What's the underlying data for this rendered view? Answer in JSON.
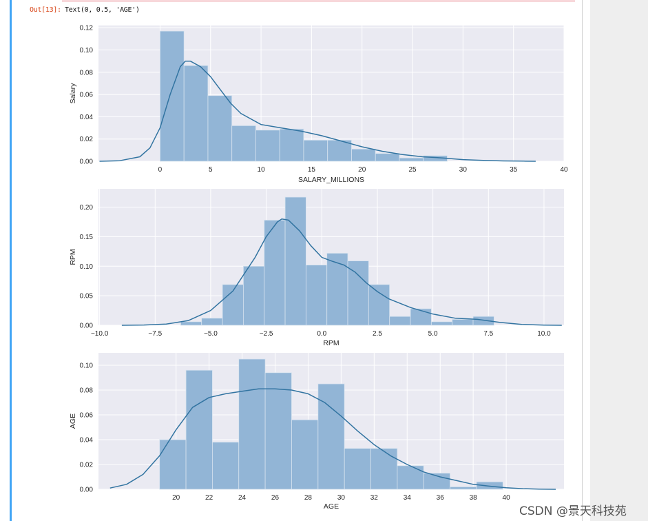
{
  "output_cell": {
    "prompt": "Out[13]:",
    "text": "Text(0, 0.5, 'AGE')"
  },
  "watermark": "CSDN @景天科技苑",
  "colors": {
    "plot_bg": "#eaeaf2",
    "grid": "#ffffff",
    "bar": "#92b5d6",
    "kde": "#3274a1",
    "tick_text": "#262626"
  },
  "chart_data": [
    {
      "type": "bar",
      "subtype": "histogram_with_kde",
      "xlabel": "SALARY_MILLIONS",
      "ylabel": "Salary",
      "xlim": [
        -6.1,
        40
      ],
      "ylim": [
        0,
        0.122
      ],
      "xticks": [
        0,
        5,
        10,
        15,
        20,
        25,
        30,
        35,
        40
      ],
      "xtick_labels": [
        "0",
        "5",
        "10",
        "15",
        "20",
        "25",
        "30",
        "35",
        "40"
      ],
      "yticks": [
        0,
        0.02,
        0.04,
        0.06,
        0.08,
        0.1,
        0.12
      ],
      "ytick_labels": [
        "0.00",
        "0.02",
        "0.04",
        "0.06",
        "0.08",
        "0.10",
        "0.12"
      ],
      "bin_edges": [
        0,
        2.37,
        4.74,
        7.11,
        9.48,
        11.85,
        14.22,
        16.59,
        18.96,
        21.33,
        23.7,
        26.07,
        28.44
      ],
      "values": [
        0.117,
        0.086,
        0.059,
        0.032,
        0.028,
        0.029,
        0.019,
        0.019,
        0.011,
        0.007,
        0.003,
        0.005
      ],
      "kde": {
        "x": [
          -6,
          -4,
          -2,
          -1,
          0,
          1,
          2,
          2.5,
          3,
          4,
          5,
          6,
          7,
          8,
          10,
          12,
          14,
          16,
          18,
          20,
          22,
          24,
          26,
          28,
          30,
          32,
          34,
          36,
          37.2
        ],
        "y": [
          0,
          0.0005,
          0.004,
          0.012,
          0.03,
          0.06,
          0.085,
          0.09,
          0.09,
          0.085,
          0.076,
          0.064,
          0.052,
          0.043,
          0.033,
          0.03,
          0.027,
          0.023,
          0.018,
          0.013,
          0.009,
          0.006,
          0.004,
          0.003,
          0.0015,
          0.0008,
          0.0003,
          0.0001,
          0
        ]
      }
    },
    {
      "type": "bar",
      "subtype": "histogram_with_kde",
      "xlabel": "RPM",
      "ylabel": "RPM",
      "xlim": [
        -10.05,
        10.9
      ],
      "ylim": [
        0,
        0.231
      ],
      "xticks": [
        -10,
        -7.5,
        -5,
        -2.5,
        0,
        2.5,
        5,
        7.5,
        10
      ],
      "xtick_labels": [
        "−10.0",
        "−7.5",
        "−5.0",
        "−2.5",
        "0.0",
        "2.5",
        "5.0",
        "7.5",
        "10.0"
      ],
      "yticks": [
        0,
        0.05,
        0.1,
        0.15,
        0.2
      ],
      "ytick_labels": [
        "0.00",
        "0.05",
        "0.10",
        "0.15",
        "0.20"
      ],
      "bin_edges": [
        -6.35,
        -5.41,
        -4.47,
        -3.53,
        -2.59,
        -1.65,
        -0.71,
        0.23,
        1.17,
        2.11,
        3.05,
        3.99,
        4.93,
        5.87,
        6.81,
        7.75
      ],
      "values": [
        0.006,
        0.012,
        0.069,
        0.1,
        0.178,
        0.217,
        0.102,
        0.122,
        0.109,
        0.069,
        0.015,
        0.028,
        0.006,
        0.01,
        0.015
      ],
      "kde": {
        "x": [
          -9,
          -8,
          -7,
          -6,
          -5,
          -4,
          -3,
          -2.5,
          -2,
          -1.8,
          -1.5,
          -1,
          -0.5,
          0,
          0.5,
          1,
          1.5,
          2,
          2.5,
          3,
          4,
          5,
          6,
          7,
          8,
          9,
          10,
          10.8
        ],
        "y": [
          0,
          0.0005,
          0.002,
          0.008,
          0.025,
          0.058,
          0.115,
          0.15,
          0.175,
          0.18,
          0.178,
          0.16,
          0.135,
          0.115,
          0.108,
          0.102,
          0.09,
          0.072,
          0.057,
          0.045,
          0.03,
          0.019,
          0.012,
          0.01,
          0.005,
          0.0015,
          0.0003,
          0
        ]
      }
    },
    {
      "type": "bar",
      "subtype": "histogram_with_kde",
      "xlabel": "AGE",
      "ylabel": "AGE",
      "xlim": [
        15.3,
        43.5
      ],
      "ylim": [
        0,
        0.11
      ],
      "xticks": [
        20,
        22,
        24,
        26,
        28,
        30,
        32,
        34,
        36,
        38,
        40
      ],
      "xtick_labels": [
        "20",
        "22",
        "24",
        "26",
        "28",
        "30",
        "32",
        "34",
        "36",
        "38",
        "40"
      ],
      "yticks": [
        0,
        0.02,
        0.04,
        0.06,
        0.08,
        0.1
      ],
      "ytick_labels": [
        "0.00",
        "0.02",
        "0.04",
        "0.06",
        "0.08",
        "0.10"
      ],
      "bin_edges": [
        19,
        20.6,
        22.2,
        23.8,
        25.4,
        27,
        28.6,
        30.2,
        31.8,
        33.4,
        35,
        36.6,
        38.2,
        39.8
      ],
      "values": [
        0.04,
        0.096,
        0.038,
        0.105,
        0.094,
        0.056,
        0.085,
        0.033,
        0.033,
        0.019,
        0.013,
        0.002,
        0.006
      ],
      "kde": {
        "x": [
          16,
          17,
          18,
          19,
          20,
          21,
          22,
          23,
          24,
          25,
          26,
          27,
          28,
          29,
          30,
          31,
          32,
          33,
          34,
          35,
          36,
          37,
          38,
          39,
          40,
          41,
          42,
          43
        ],
        "y": [
          0.001,
          0.004,
          0.012,
          0.027,
          0.048,
          0.066,
          0.074,
          0.077,
          0.079,
          0.081,
          0.081,
          0.08,
          0.077,
          0.07,
          0.059,
          0.047,
          0.036,
          0.027,
          0.02,
          0.014,
          0.01,
          0.007,
          0.004,
          0.0025,
          0.0012,
          0.0005,
          0.0001,
          0
        ]
      }
    }
  ]
}
